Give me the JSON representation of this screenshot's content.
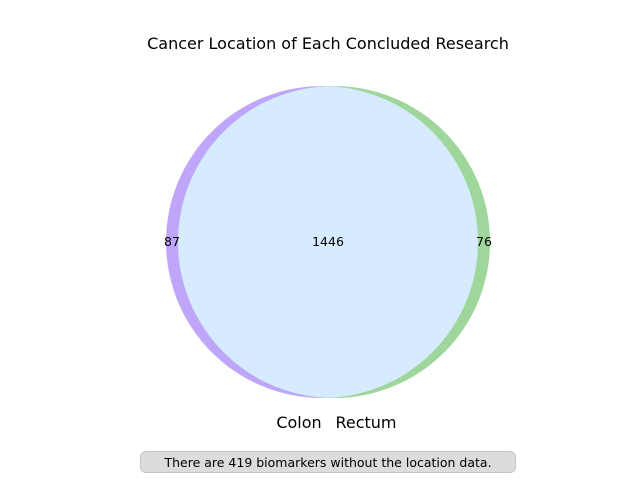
{
  "title": "Cancer Location of Each Concluded Research",
  "sets": [
    {
      "name": "Colon",
      "only_count": "87",
      "color": "#c0a6fb"
    },
    {
      "name": "Rectum",
      "only_count": "76",
      "color": "#9ed69b"
    }
  ],
  "intersection": {
    "count": "1446",
    "color": "#d6ebfe"
  },
  "note": "There are 419 biomarkers without the location data."
}
